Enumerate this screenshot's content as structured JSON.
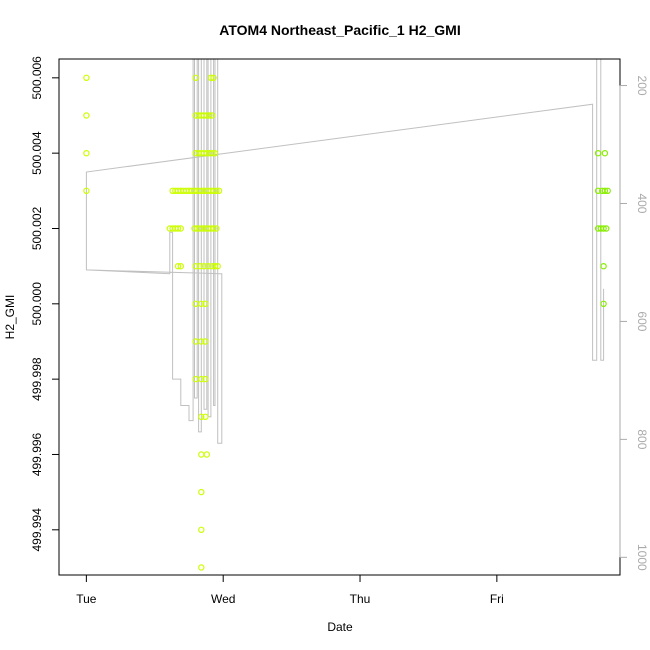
{
  "chart_data": {
    "type": "scatter",
    "title": "ATOM4 Northeast_Pacific_1 H2_GMI",
    "xlabel": "Date",
    "ylabel": "H2_GMI",
    "x_ticks": [
      "Tue",
      "Wed",
      "Thu",
      "Fri"
    ],
    "x_tick_values": [
      0,
      1,
      2,
      3
    ],
    "xlim": [
      -0.2,
      3.9
    ],
    "ylim": [
      499.9928,
      500.0065
    ],
    "y_ticks": [
      "499.994",
      "499.996",
      "499.998",
      "500.000",
      "500.002",
      "500.004",
      "500.006"
    ],
    "y_tick_values": [
      499.994,
      499.996,
      499.998,
      500.0,
      500.002,
      500.004,
      500.006
    ],
    "right_axis": {
      "ticks": [
        "200",
        "400",
        "600",
        "800",
        "1000"
      ],
      "tick_values": [
        200,
        400,
        600,
        800,
        1000
      ],
      "lim": [
        1030,
        155
      ],
      "color": "#aaaaaa"
    },
    "grid": false,
    "legend": "none",
    "point_colors": {
      "early": "#ccff00",
      "late": "#88ee00"
    },
    "line_color": "#c0c0c0",
    "points": [
      {
        "x": 0.0,
        "y": 500.006
      },
      {
        "x": 0.0,
        "y": 500.005
      },
      {
        "x": 0.0,
        "y": 500.004
      },
      {
        "x": 0.0,
        "y": 500.003
      },
      {
        "x": 0.61,
        "y": 500.002
      },
      {
        "x": 0.63,
        "y": 500.002
      },
      {
        "x": 0.65,
        "y": 500.002
      },
      {
        "x": 0.67,
        "y": 500.002
      },
      {
        "x": 0.69,
        "y": 500.002
      },
      {
        "x": 0.63,
        "y": 500.003
      },
      {
        "x": 0.65,
        "y": 500.003
      },
      {
        "x": 0.67,
        "y": 500.003
      },
      {
        "x": 0.69,
        "y": 500.003
      },
      {
        "x": 0.71,
        "y": 500.003
      },
      {
        "x": 0.73,
        "y": 500.003
      },
      {
        "x": 0.75,
        "y": 500.003
      },
      {
        "x": 0.77,
        "y": 500.003
      },
      {
        "x": 0.79,
        "y": 500.003
      },
      {
        "x": 0.81,
        "y": 500.003
      },
      {
        "x": 0.83,
        "y": 500.003
      },
      {
        "x": 0.85,
        "y": 500.003
      },
      {
        "x": 0.87,
        "y": 500.003
      },
      {
        "x": 0.89,
        "y": 500.003
      },
      {
        "x": 0.91,
        "y": 500.003
      },
      {
        "x": 0.93,
        "y": 500.003
      },
      {
        "x": 0.95,
        "y": 500.003
      },
      {
        "x": 0.97,
        "y": 500.003
      },
      {
        "x": 0.67,
        "y": 500.001
      },
      {
        "x": 0.69,
        "y": 500.001
      },
      {
        "x": 0.79,
        "y": 500.002
      },
      {
        "x": 0.81,
        "y": 500.002
      },
      {
        "x": 0.83,
        "y": 500.002
      },
      {
        "x": 0.85,
        "y": 500.002
      },
      {
        "x": 0.87,
        "y": 500.002
      },
      {
        "x": 0.89,
        "y": 500.002
      },
      {
        "x": 0.91,
        "y": 500.002
      },
      {
        "x": 0.93,
        "y": 500.002
      },
      {
        "x": 0.95,
        "y": 500.002
      },
      {
        "x": 0.8,
        "y": 500.004
      },
      {
        "x": 0.82,
        "y": 500.004
      },
      {
        "x": 0.84,
        "y": 500.004
      },
      {
        "x": 0.86,
        "y": 500.004
      },
      {
        "x": 0.88,
        "y": 500.004
      },
      {
        "x": 0.9,
        "y": 500.004
      },
      {
        "x": 0.92,
        "y": 500.004
      },
      {
        "x": 0.94,
        "y": 500.004
      },
      {
        "x": 0.8,
        "y": 500.005
      },
      {
        "x": 0.82,
        "y": 500.005
      },
      {
        "x": 0.84,
        "y": 500.005
      },
      {
        "x": 0.86,
        "y": 500.005
      },
      {
        "x": 0.88,
        "y": 500.005
      },
      {
        "x": 0.9,
        "y": 500.005
      },
      {
        "x": 0.92,
        "y": 500.005
      },
      {
        "x": 0.8,
        "y": 500.006
      },
      {
        "x": 0.91,
        "y": 500.006
      },
      {
        "x": 0.93,
        "y": 500.006
      },
      {
        "x": 0.8,
        "y": 500.001
      },
      {
        "x": 0.83,
        "y": 500.001
      },
      {
        "x": 0.86,
        "y": 500.001
      },
      {
        "x": 0.89,
        "y": 500.001
      },
      {
        "x": 0.92,
        "y": 500.001
      },
      {
        "x": 0.94,
        "y": 500.001
      },
      {
        "x": 0.96,
        "y": 500.001
      },
      {
        "x": 0.8,
        "y": 500.0
      },
      {
        "x": 0.84,
        "y": 500.0
      },
      {
        "x": 0.87,
        "y": 500.0
      },
      {
        "x": 0.8,
        "y": 499.999
      },
      {
        "x": 0.84,
        "y": 499.999
      },
      {
        "x": 0.87,
        "y": 499.999
      },
      {
        "x": 0.8,
        "y": 499.998
      },
      {
        "x": 0.84,
        "y": 499.998
      },
      {
        "x": 0.87,
        "y": 499.998
      },
      {
        "x": 0.84,
        "y": 499.997
      },
      {
        "x": 0.87,
        "y": 499.997
      },
      {
        "x": 0.84,
        "y": 499.996
      },
      {
        "x": 0.88,
        "y": 499.996
      },
      {
        "x": 0.84,
        "y": 499.995
      },
      {
        "x": 0.84,
        "y": 499.994
      },
      {
        "x": 0.84,
        "y": 499.993
      },
      {
        "x": 3.74,
        "y": 500.004
      },
      {
        "x": 3.79,
        "y": 500.004
      },
      {
        "x": 3.74,
        "y": 500.003
      },
      {
        "x": 3.77,
        "y": 500.003
      },
      {
        "x": 3.79,
        "y": 500.003
      },
      {
        "x": 3.81,
        "y": 500.003
      },
      {
        "x": 3.74,
        "y": 500.002
      },
      {
        "x": 3.76,
        "y": 500.002
      },
      {
        "x": 3.78,
        "y": 500.002
      },
      {
        "x": 3.8,
        "y": 500.002
      },
      {
        "x": 3.78,
        "y": 500.001
      },
      {
        "x": 3.78,
        "y": 500.0
      }
    ],
    "line": [
      {
        "x": 0.0,
        "y": 500.003
      },
      {
        "x": 0.0,
        "y": 500.0035
      },
      {
        "x": 0.0,
        "y": 500.0009
      },
      {
        "x": 0.61,
        "y": 500.0008
      },
      {
        "x": 0.61,
        "y": 500.0019
      },
      {
        "x": 0.63,
        "y": 500.0019
      },
      {
        "x": 0.63,
        "y": 499.998
      },
      {
        "x": 0.69,
        "y": 499.998
      },
      {
        "x": 0.69,
        "y": 499.9973
      },
      {
        "x": 0.75,
        "y": 499.9973
      },
      {
        "x": 0.75,
        "y": 499.9969
      },
      {
        "x": 0.78,
        "y": 499.9969
      },
      {
        "x": 0.78,
        "y": 500.0065
      },
      {
        "x": 0.79,
        "y": 500.0065
      },
      {
        "x": 0.79,
        "y": 499.9975
      },
      {
        "x": 0.81,
        "y": 499.9975
      },
      {
        "x": 0.81,
        "y": 500.0065
      },
      {
        "x": 0.82,
        "y": 500.0065
      },
      {
        "x": 0.82,
        "y": 499.9966
      },
      {
        "x": 0.84,
        "y": 499.9966
      },
      {
        "x": 0.84,
        "y": 500.0065
      },
      {
        "x": 0.86,
        "y": 500.0065
      },
      {
        "x": 0.86,
        "y": 499.9972
      },
      {
        "x": 0.88,
        "y": 499.9972
      },
      {
        "x": 0.88,
        "y": 500.0065
      },
      {
        "x": 0.89,
        "y": 500.0065
      },
      {
        "x": 0.89,
        "y": 499.997
      },
      {
        "x": 0.91,
        "y": 499.997
      },
      {
        "x": 0.91,
        "y": 500.0065
      },
      {
        "x": 0.93,
        "y": 500.0065
      },
      {
        "x": 0.93,
        "y": 499.9973
      },
      {
        "x": 0.94,
        "y": 499.9973
      },
      {
        "x": 0.94,
        "y": 500.0065
      },
      {
        "x": 0.96,
        "y": 500.0065
      },
      {
        "x": 0.96,
        "y": 499.9963
      },
      {
        "x": 0.99,
        "y": 499.9963
      },
      {
        "x": 0.99,
        "y": 500.0008
      },
      {
        "x": 0.0,
        "y": 500.0009
      },
      {
        "x": 0.0,
        "y": 500.0035
      },
      {
        "x": 3.7,
        "y": 500.0053
      },
      {
        "x": 3.7,
        "y": 499.9985
      },
      {
        "x": 3.73,
        "y": 499.9985
      },
      {
        "x": 3.73,
        "y": 500.0065
      },
      {
        "x": 3.76,
        "y": 500.0065
      },
      {
        "x": 3.76,
        "y": 499.9985
      },
      {
        "x": 3.78,
        "y": 499.9985
      },
      {
        "x": 3.78,
        "y": 500.0004
      }
    ]
  }
}
